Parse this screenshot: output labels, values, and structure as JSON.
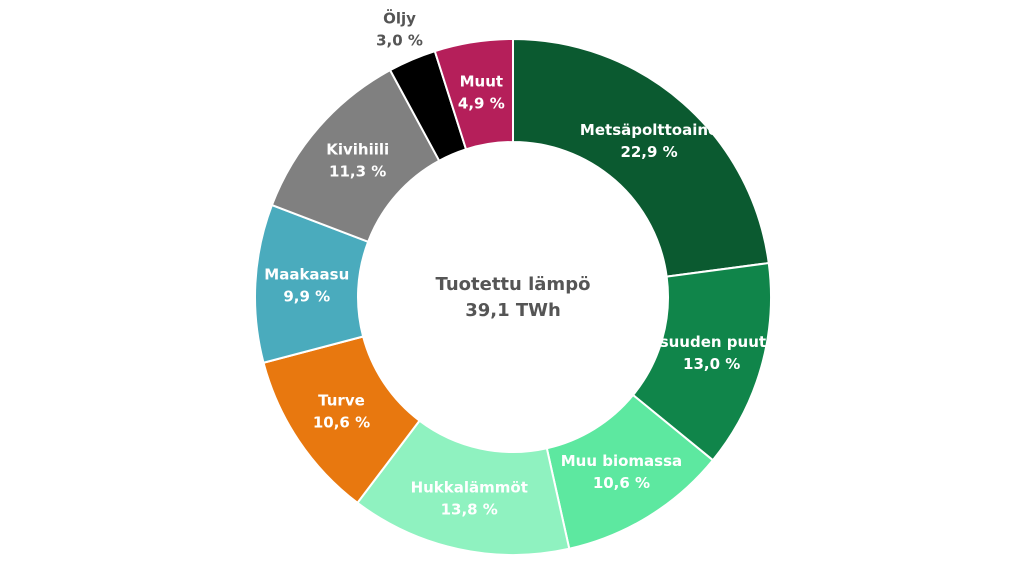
{
  "chart_data": {
    "type": "donut",
    "annotations": [
      "Tuotettu lämpö",
      "39,1 TWh"
    ],
    "categories": [
      "Metsäpolttoaine",
      "Teollisuuden puutähde",
      "Muu biomassa",
      "Hukkalämmöt",
      "Turve",
      "Maakaasu",
      "Kivihiili",
      "Öljy",
      "Muut"
    ],
    "values": [
      22.9,
      13.0,
      10.6,
      13.8,
      10.6,
      9.9,
      11.3,
      3.0,
      4.9
    ],
    "value_labels": [
      "22,9 %",
      "13,0 %",
      "10,6 %",
      "13,8 %",
      "10,6 %",
      "9,9 %",
      "11,3 %",
      "3,0 %",
      "4,9 %"
    ],
    "colors": [
      "#0b5a30",
      "#10854a",
      "#5de8a0",
      "#8ff2c0",
      "#e8780f",
      "#4aabbd",
      "#808080",
      "#000000",
      "#b51f5a"
    ]
  }
}
